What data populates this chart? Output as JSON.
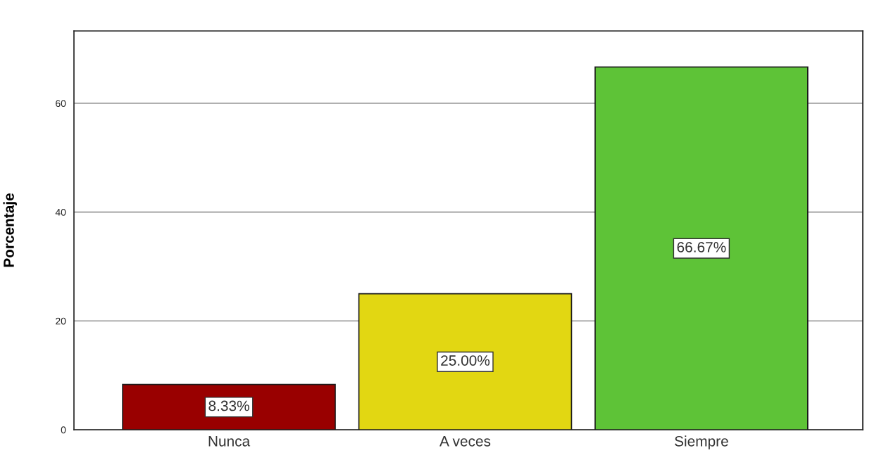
{
  "chart_data": {
    "type": "bar",
    "ylabel": "Porcentaje",
    "categories": [
      "Nunca",
      "A veces",
      "Siempre"
    ],
    "values": [
      8.33,
      25.0,
      66.67
    ],
    "colors": [
      "#990000",
      "#e2d712",
      "#5ec337"
    ],
    "value_labels": [
      "8.33%",
      "25.00%",
      "66.67%"
    ],
    "ylim": [
      0,
      73.3
    ],
    "yticks": [
      0,
      20,
      40,
      60
    ],
    "grid": "y"
  }
}
